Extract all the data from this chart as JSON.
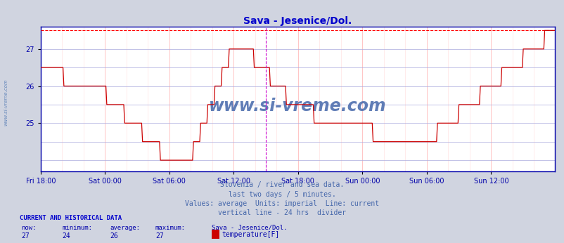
{
  "title": "Sava - Jesenice/Dol.",
  "title_color": "#0000cc",
  "bg_color": "#d0d4e0",
  "plot_bg_color": "#ffffff",
  "axis_color": "#0000aa",
  "grid_color_h": "#ffaaaa",
  "grid_color_v": "#aaaacc",
  "line_color": "#cc0000",
  "dashed_max_color": "#ff0000",
  "vline_color": "#cc00cc",
  "ymin": 23.7,
  "ymax": 27.6,
  "yticks": [
    25,
    26,
    27
  ],
  "xtick_labels": [
    "Fri 18:00",
    "Sat 00:00",
    "Sat 06:00",
    "Sat 12:00",
    "Sat 18:00",
    "Sun 00:00",
    "Sun 06:00",
    "Sun 12:00"
  ],
  "xlabel_color": "#0000aa",
  "watermark": "www.si-vreme.com",
  "watermark_color": "#4466aa",
  "footer_lines": [
    "Slovenia / river and sea data.",
    "last two days / 5 minutes.",
    "Values: average  Units: imperial  Line: current",
    "vertical line - 24 hrs  divider"
  ],
  "footer_color": "#4466aa",
  "sidebar_text": "www.si-vreme.com",
  "sidebar_color": "#6688bb",
  "bottom_label_color": "#0000cc",
  "now_val": "27",
  "min_val": "24",
  "avg_val": "26",
  "max_val": "27",
  "station_name": "Sava - Jesenice/Dol.",
  "param_name": "temperature[F]",
  "legend_box_color": "#cc0000",
  "num_points": 576
}
